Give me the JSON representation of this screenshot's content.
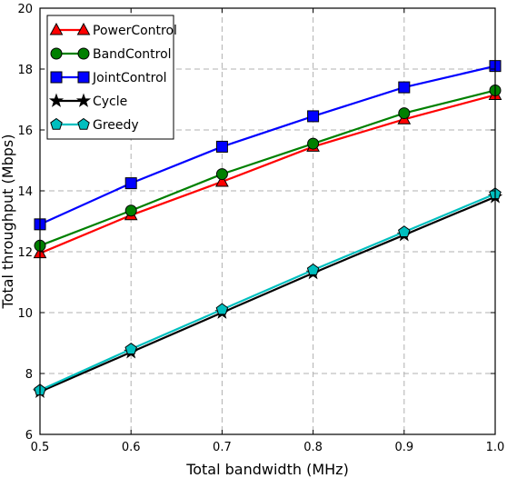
{
  "chart_data": {
    "type": "line",
    "title": "",
    "xlabel": "Total bandwidth (MHz)",
    "ylabel": "Total throughput (Mbps)",
    "xlim": [
      0.5,
      1.0
    ],
    "ylim": [
      6,
      20
    ],
    "xticks": [
      "0.5",
      "0.6",
      "0.7",
      "0.8",
      "0.9",
      "1.0"
    ],
    "yticks": [
      "6",
      "8",
      "10",
      "12",
      "14",
      "16",
      "18",
      "20"
    ],
    "grid": true,
    "legend_position": "top-left",
    "x": [
      0.5,
      0.6,
      0.7,
      0.8,
      0.9,
      1.0
    ],
    "series": [
      {
        "name": "PowerControl",
        "values": [
          11.95,
          13.2,
          14.3,
          15.45,
          16.35,
          17.15
        ],
        "color": "#ff0000",
        "marker": "triangle"
      },
      {
        "name": "BandControl",
        "values": [
          12.2,
          13.35,
          14.55,
          15.55,
          16.55,
          17.3
        ],
        "color": "#008000",
        "marker": "circle"
      },
      {
        "name": "JointControl",
        "values": [
          12.9,
          14.25,
          15.45,
          16.45,
          17.4,
          18.1
        ],
        "color": "#0000ff",
        "marker": "square"
      },
      {
        "name": "Cycle",
        "values": [
          7.4,
          8.7,
          10.0,
          11.3,
          12.55,
          13.8
        ],
        "color": "#000000",
        "marker": "star"
      },
      {
        "name": "Greedy",
        "values": [
          7.45,
          8.8,
          10.1,
          11.4,
          12.65,
          13.9
        ],
        "color": "#00bfbf",
        "marker": "pentagon"
      }
    ]
  }
}
